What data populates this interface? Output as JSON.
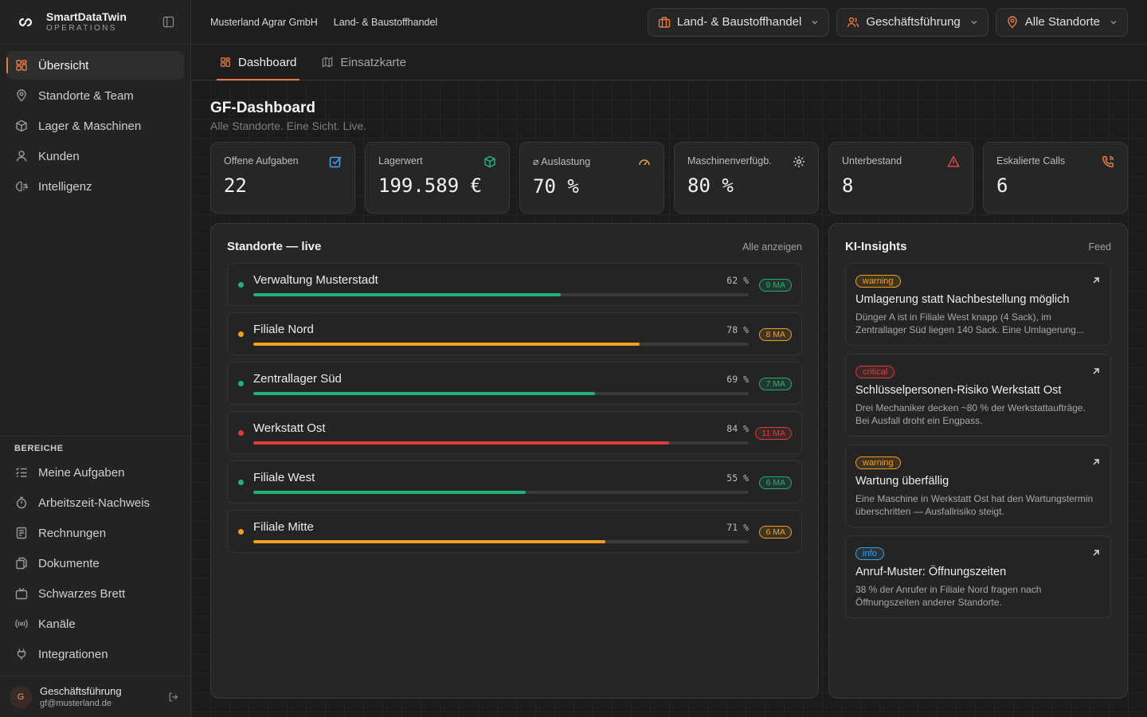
{
  "brand": {
    "name": "SmartDataTwin",
    "sub": "OPERATIONS"
  },
  "nav": {
    "main": [
      {
        "label": "Übersicht",
        "icon": "grid-icon",
        "active": true
      },
      {
        "label": "Standorte & Team",
        "icon": "map-pin-icon"
      },
      {
        "label": "Lager & Maschinen",
        "icon": "box-icon"
      },
      {
        "label": "Kunden",
        "icon": "user-icon"
      },
      {
        "label": "Intelligenz",
        "icon": "brain-icon"
      }
    ],
    "section_label": "BEREICHE",
    "areas": [
      {
        "label": "Meine Aufgaben",
        "icon": "checklist-icon"
      },
      {
        "label": "Arbeitszeit-Nachweis",
        "icon": "stopwatch-icon"
      },
      {
        "label": "Rechnungen",
        "icon": "receipt-icon"
      },
      {
        "label": "Dokumente",
        "icon": "documents-icon"
      },
      {
        "label": "Schwarzes Brett",
        "icon": "tv-icon"
      },
      {
        "label": "Kanäle",
        "icon": "radio-icon"
      },
      {
        "label": "Integrationen",
        "icon": "plug-icon"
      }
    ]
  },
  "user": {
    "initial": "G",
    "name": "Geschäftsführung",
    "email": "gf@musterland.de"
  },
  "topbar": {
    "company": "Musterland Agrar GmbH",
    "division": "Land- & Baustoffhandel",
    "dropdowns": [
      {
        "label": "Land- & Baustoffhandel",
        "icon": "briefcase-icon"
      },
      {
        "label": "Geschäftsführung",
        "icon": "users-icon"
      },
      {
        "label": "Alle Standorte",
        "icon": "map-pin-icon"
      }
    ]
  },
  "tabs": [
    {
      "label": "Dashboard",
      "icon": "dashboard-icon",
      "active": true
    },
    {
      "label": "Einsatzkarte",
      "icon": "map-icon"
    }
  ],
  "page": {
    "title": "GF-Dashboard",
    "subtitle": "Alle Standorte. Eine Sicht. Live."
  },
  "kpis": [
    {
      "label": "Offene Aufgaben",
      "value": "22",
      "icon": "checkbox-icon",
      "color": "#4a9eea"
    },
    {
      "label": "Lagerwert",
      "value": "199.589 €",
      "icon": "cube-icon",
      "color": "#27b07a"
    },
    {
      "label": "⌀ Auslastung",
      "value": "70 %",
      "icon": "gauge-icon",
      "color": "#e8a23a"
    },
    {
      "label": "Maschinenverfügb.",
      "value": "80 %",
      "icon": "gear-icon",
      "color": "#cfcfcf"
    },
    {
      "label": "Unterbestand",
      "value": "8",
      "icon": "warning-icon",
      "color": "#e04848"
    },
    {
      "label": "Eskalierte Calls",
      "value": "6",
      "icon": "phone-icon",
      "color": "#e87a45"
    }
  ],
  "sites_panel": {
    "title": "Standorte — live",
    "link": "Alle anzeigen",
    "sites": [
      {
        "name": "Verwaltung Musterstadt",
        "pct": "62 %",
        "util": 0.62,
        "badge": "9 MA",
        "status": "green"
      },
      {
        "name": "Filiale Nord",
        "pct": "78 %",
        "util": 0.78,
        "badge": "8 MA",
        "status": "orange"
      },
      {
        "name": "Zentrallager Süd",
        "pct": "69 %",
        "util": 0.69,
        "badge": "7 MA",
        "status": "green"
      },
      {
        "name": "Werkstatt Ost",
        "pct": "84 %",
        "util": 0.84,
        "badge": "11 MA",
        "status": "red"
      },
      {
        "name": "Filiale West",
        "pct": "55 %",
        "util": 0.55,
        "badge": "6 MA",
        "status": "green"
      },
      {
        "name": "Filiale Mitte",
        "pct": "71 %",
        "util": 0.71,
        "badge": "6 MA",
        "status": "orange"
      }
    ]
  },
  "status_colors": {
    "green": "#20b27a",
    "orange": "#f0a020",
    "red": "#e03a3a",
    "blue": "#3aa0e0"
  },
  "insights_panel": {
    "title": "KI-Insights",
    "link": "Feed",
    "items": [
      {
        "tag": "warning",
        "level": "orange",
        "title": "Umlagerung statt Nachbestellung möglich",
        "desc": "Dünger A ist in Filiale West knapp (4 Sack), im Zentrallager Süd liegen 140 Sack. Eine Umlagerung..."
      },
      {
        "tag": "critical",
        "level": "red",
        "title": "Schlüsselpersonen-Risiko Werkstatt Ost",
        "desc": "Drei Mechaniker decken ~80 % der Werkstattaufträge. Bei Ausfall droht ein Engpass."
      },
      {
        "tag": "warning",
        "level": "orange",
        "title": "Wartung überfällig",
        "desc": "Eine Maschine in Werkstatt Ost hat den Wartungstermin überschritten — Ausfallrisiko steigt."
      },
      {
        "tag": "info",
        "level": "blue",
        "title": "Anruf-Muster: Öffnungszeiten",
        "desc": "38 % der Anrufer in Filiale Nord fragen nach Öffnungszeiten anderer Standorte."
      }
    ]
  },
  "accent": "#e87a45"
}
